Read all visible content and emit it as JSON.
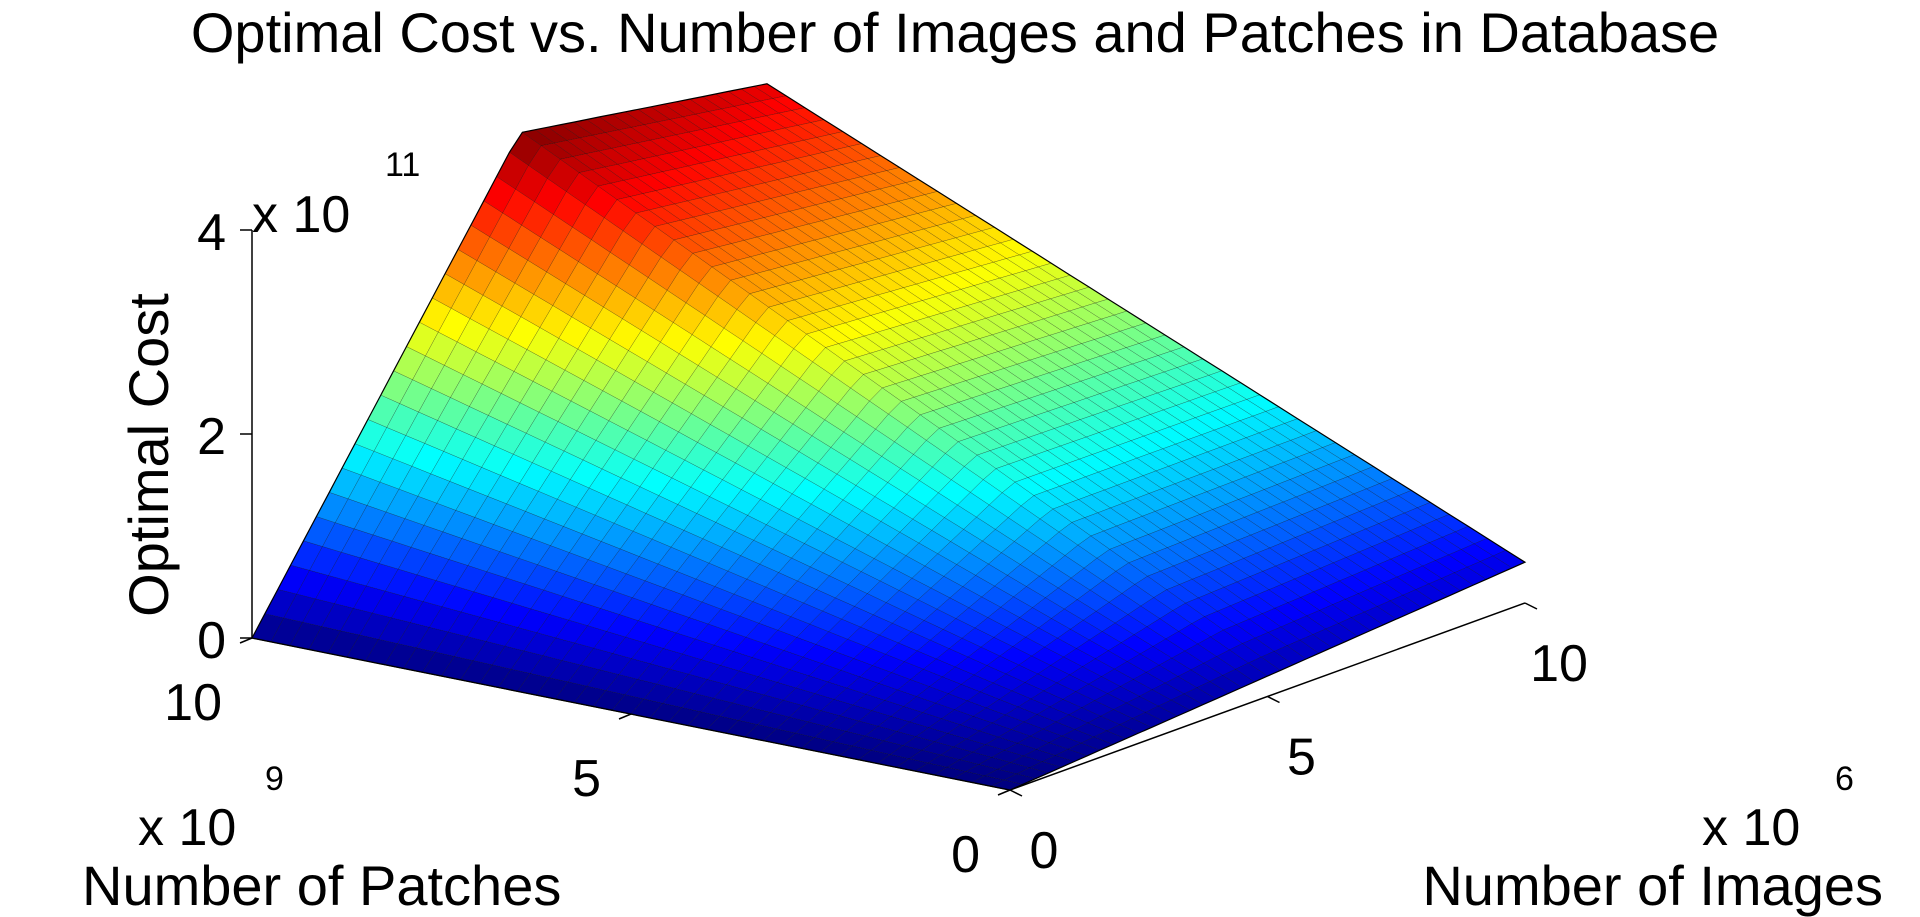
{
  "chart_data": {
    "type": "surface",
    "title": "Optimal Cost vs. Number of Images and Patches in Database",
    "xlabel": "Number of Images",
    "ylabel": "Number of Patches",
    "zlabel": "Optimal Cost",
    "x_multiplier": {
      "base": "x 10",
      "exponent": "6"
    },
    "y_multiplier": {
      "base": "x 10",
      "exponent": "9"
    },
    "z_multiplier": {
      "base": "x 10",
      "exponent": "11"
    },
    "xlim": [
      0,
      10
    ],
    "ylim": [
      0,
      10
    ],
    "zlim": [
      0,
      4
    ],
    "x_ticks": [
      "0",
      "5",
      "10"
    ],
    "y_ticks": [
      "0",
      "5",
      "10"
    ],
    "z_ticks": [
      "0",
      "2",
      "4"
    ],
    "grid": false,
    "colormap": "jet",
    "surface_corners": [
      {
        "images": 0,
        "patches": 0,
        "cost": 0
      },
      {
        "images": 10,
        "patches": 0,
        "cost": 0.4
      },
      {
        "images": 10,
        "patches": 10,
        "cost": 3.6
      },
      {
        "images": 0,
        "patches": 10,
        "cost": 0
      }
    ],
    "surface_ridge": [
      {
        "images": 0,
        "patches": 0,
        "cost": 0
      },
      {
        "images": 5.2,
        "patches": 10,
        "cost": 4.0
      }
    ]
  }
}
